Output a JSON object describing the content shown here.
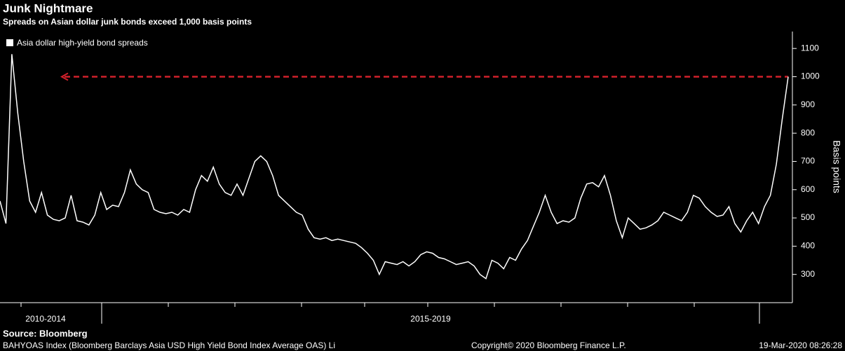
{
  "chart_data": {
    "type": "line",
    "title": "Junk Nightmare",
    "subtitle": "Spreads on Asian dollar junk bonds exceed 1,000 basis points",
    "y_label": "Basis points",
    "period_labels": [
      "2010-2014",
      "2015-2019"
    ],
    "series": [
      {
        "name": "Asia dollar high-yield bond spreads",
        "color": "#ffffff",
        "values": [
          560,
          480,
          1080,
          870,
          700,
          560,
          520,
          590,
          510,
          495,
          490,
          500,
          580,
          490,
          485,
          475,
          510,
          590,
          530,
          545,
          540,
          590,
          670,
          620,
          600,
          590,
          530,
          520,
          515,
          520,
          510,
          530,
          520,
          600,
          650,
          630,
          680,
          620,
          590,
          580,
          620,
          580,
          640,
          700,
          720,
          700,
          650,
          580,
          560,
          540,
          520,
          510,
          460,
          430,
          425,
          430,
          420,
          425,
          420,
          415,
          410,
          395,
          375,
          350,
          300,
          345,
          340,
          335,
          345,
          330,
          345,
          370,
          380,
          375,
          360,
          355,
          345,
          335,
          340,
          345,
          330,
          300,
          285,
          350,
          340,
          320,
          360,
          350,
          390,
          420,
          470,
          520,
          580,
          520,
          480,
          490,
          485,
          500,
          570,
          620,
          625,
          610,
          650,
          580,
          490,
          430,
          500,
          480,
          460,
          465,
          475,
          490,
          520,
          510,
          500,
          490,
          520,
          580,
          570,
          540,
          520,
          505,
          510,
          540,
          480,
          450,
          490,
          520,
          480,
          540,
          580,
          690,
          850,
          1000
        ]
      }
    ],
    "reference_line": 1000,
    "reference_color": "#d0202a",
    "ylim": [
      200,
      1160
    ],
    "yticks": [
      300,
      400,
      500,
      600,
      700,
      800,
      900,
      1000,
      1100
    ],
    "source": "Source: Bloomberg",
    "footer_left": "BAHYOAS Index (Bloomberg Barclays Asia USD High Yield Bond Index Average OAS) Li",
    "copyright": "Copyright© 2020 Bloomberg Finance L.P.",
    "date_stamp": "19-Mar-2020 08:26:28"
  }
}
